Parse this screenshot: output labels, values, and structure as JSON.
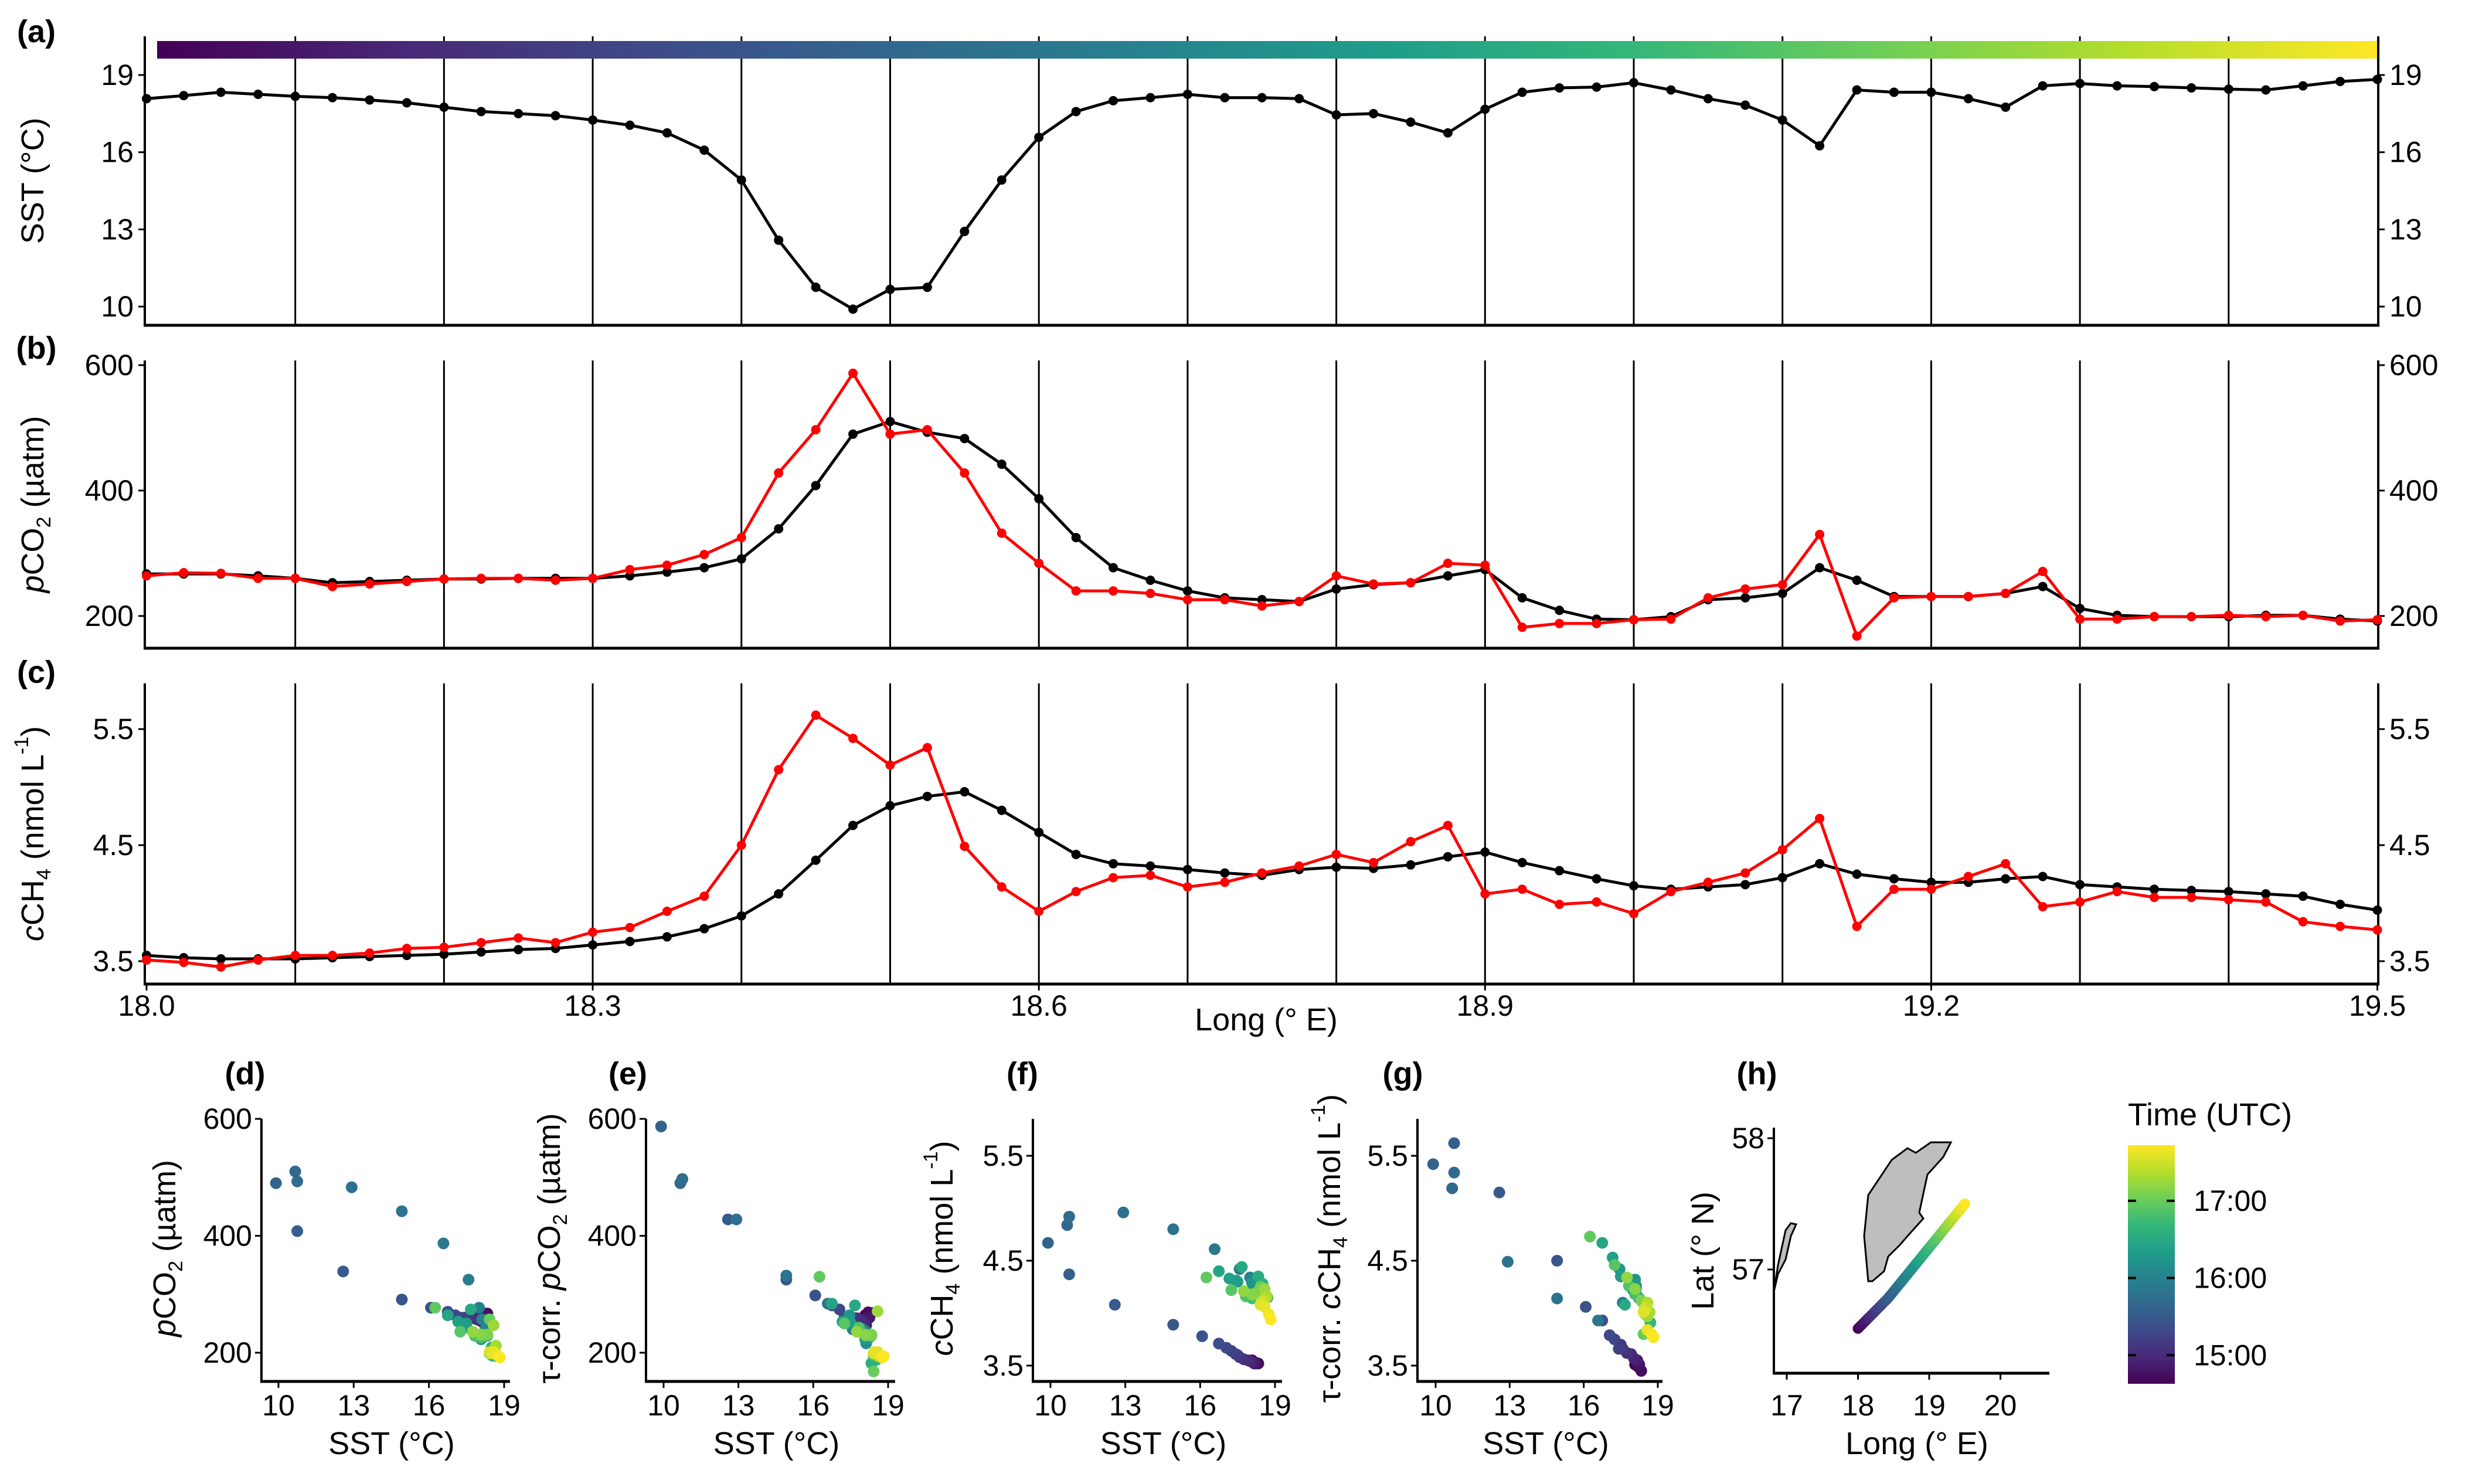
{
  "figure": {
    "panel_labels": {
      "a": "(a)",
      "b": "(b)",
      "c": "(c)",
      "d": "(d)",
      "e": "(e)",
      "f": "(f)",
      "g": "(g)",
      "h": "(h)"
    },
    "colormap": [
      "#440154",
      "#482878",
      "#3e4a89",
      "#31688e",
      "#26828e",
      "#1f9e89",
      "#35b779",
      "#6ece58",
      "#b5de2b",
      "#fde725"
    ],
    "colors": {
      "measured": "#000000",
      "tau_corrected": "#ff0000",
      "land": "#bebebe"
    }
  },
  "series": {
    "lon": [
      18.0,
      18.025,
      18.05,
      18.075,
      18.1,
      18.125,
      18.15,
      18.175,
      18.2,
      18.225,
      18.25,
      18.275,
      18.3,
      18.325,
      18.35,
      18.375,
      18.4,
      18.425,
      18.45,
      18.475,
      18.5,
      18.525,
      18.55,
      18.575,
      18.6,
      18.625,
      18.65,
      18.675,
      18.7,
      18.725,
      18.75,
      18.775,
      18.8,
      18.825,
      18.85,
      18.875,
      18.9,
      18.925,
      18.95,
      18.975,
      19.0,
      19.025,
      19.05,
      19.075,
      19.1,
      19.125,
      19.15,
      19.175,
      19.2,
      19.225,
      19.25,
      19.275,
      19.3,
      19.325,
      19.35,
      19.375,
      19.4,
      19.425,
      19.45,
      19.475,
      19.5
    ],
    "sst": [
      18.08,
      18.2,
      18.33,
      18.25,
      18.17,
      18.12,
      18.03,
      17.92,
      17.75,
      17.58,
      17.5,
      17.42,
      17.25,
      17.05,
      16.75,
      16.08,
      14.92,
      12.58,
      10.75,
      9.9,
      10.67,
      10.75,
      12.92,
      14.92,
      16.58,
      17.58,
      18.0,
      18.12,
      18.25,
      18.12,
      18.12,
      18.08,
      17.45,
      17.5,
      17.17,
      16.75,
      17.67,
      18.33,
      18.5,
      18.53,
      18.7,
      18.42,
      18.08,
      17.83,
      17.25,
      16.25,
      18.42,
      18.33,
      18.33,
      18.08,
      17.75,
      18.58,
      18.67,
      18.58,
      18.55,
      18.5,
      18.45,
      18.42,
      18.58,
      18.75,
      18.83
    ],
    "pco2": [
      267,
      267,
      267,
      264,
      260,
      253,
      255,
      257,
      259,
      259,
      260,
      260,
      260,
      264,
      270,
      277,
      291,
      339,
      408,
      490,
      510,
      493,
      483,
      442,
      387,
      325,
      277,
      257,
      240,
      229,
      226,
      223,
      243,
      250,
      253,
      264,
      274,
      229,
      209,
      195,
      194,
      199,
      226,
      229,
      236,
      277,
      257,
      231,
      231,
      231,
      236,
      247,
      212,
      201,
      199,
      199,
      199,
      201,
      201,
      195,
      192
    ],
    "pco2_tau": [
      264,
      269,
      268,
      260,
      260,
      247,
      251,
      255,
      259,
      260,
      260,
      257,
      260,
      274,
      281,
      298,
      325,
      428,
      497,
      587,
      490,
      497,
      428,
      332,
      284,
      240,
      240,
      236,
      226,
      226,
      216,
      223,
      264,
      251,
      253,
      284,
      281,
      182,
      188,
      188,
      194,
      195,
      229,
      243,
      250,
      330,
      168,
      229,
      231,
      231,
      236,
      271,
      195,
      195,
      199,
      199,
      201,
      199,
      201,
      192,
      194
    ],
    "ch4": [
      3.55,
      3.53,
      3.52,
      3.52,
      3.52,
      3.53,
      3.54,
      3.55,
      3.56,
      3.58,
      3.6,
      3.61,
      3.64,
      3.67,
      3.71,
      3.78,
      3.89,
      4.08,
      4.37,
      4.67,
      4.84,
      4.92,
      4.96,
      4.8,
      4.61,
      4.42,
      4.34,
      4.32,
      4.29,
      4.26,
      4.24,
      4.29,
      4.31,
      4.3,
      4.33,
      4.4,
      4.44,
      4.35,
      4.28,
      4.21,
      4.15,
      4.12,
      4.14,
      4.16,
      4.22,
      4.34,
      4.25,
      4.21,
      4.18,
      4.18,
      4.21,
      4.23,
      4.16,
      4.14,
      4.12,
      4.11,
      4.1,
      4.08,
      4.06,
      3.99,
      3.94
    ],
    "ch4_tau": [
      3.51,
      3.49,
      3.45,
      3.51,
      3.55,
      3.55,
      3.57,
      3.61,
      3.62,
      3.66,
      3.7,
      3.66,
      3.75,
      3.79,
      3.93,
      4.06,
      4.5,
      5.15,
      5.62,
      5.42,
      5.19,
      5.34,
      4.49,
      4.14,
      3.93,
      4.1,
      4.22,
      4.24,
      4.14,
      4.18,
      4.26,
      4.32,
      4.42,
      4.35,
      4.53,
      4.67,
      4.08,
      4.12,
      3.99,
      4.01,
      3.91,
      4.1,
      4.18,
      4.26,
      4.46,
      4.73,
      3.8,
      4.12,
      4.12,
      4.23,
      4.34,
      3.97,
      4.01,
      4.1,
      4.05,
      4.05,
      4.03,
      4.01,
      3.84,
      3.8,
      3.77
    ]
  },
  "chart_data": [
    {
      "id": "a",
      "type": "line",
      "xlabel": "",
      "ylabel_parts": [
        {
          "t": "SST (°C)"
        }
      ],
      "ylim": [
        9.3,
        20.5
      ],
      "yticks": [
        19,
        16,
        13,
        10
      ],
      "ytick_labels": [
        "19",
        "16",
        "13",
        "10"
      ],
      "series": [
        {
          "name": "SST",
          "key": "sst",
          "color": "measured"
        }
      ],
      "time_bar": true,
      "grid_x": "every 0.1°"
    },
    {
      "id": "b",
      "type": "line",
      "xlabel": "",
      "ylabel_parts": [
        {
          "t": "p",
          "s": "i"
        },
        {
          "t": "CO"
        },
        {
          "t": "2",
          "s": "sub"
        },
        {
          "t": " (µatm)"
        }
      ],
      "ylim": [
        149,
        607
      ],
      "yticks": [
        600,
        400,
        200
      ],
      "ytick_labels": [
        "600",
        "400",
        "200"
      ],
      "series": [
        {
          "name": "pCO2",
          "key": "pco2",
          "color": "measured"
        },
        {
          "name": "τ-corr. pCO2",
          "key": "pco2_tau",
          "color": "tau_corrected"
        }
      ]
    },
    {
      "id": "c",
      "type": "line",
      "xlabel": "Long (° E)",
      "ylabel_parts": [
        {
          "t": "c",
          "s": "i"
        },
        {
          "t": "CH"
        },
        {
          "t": "4",
          "s": "sub"
        },
        {
          "t": " (nmol L"
        },
        {
          "t": "-1",
          "s": "sup"
        },
        {
          "t": ")"
        }
      ],
      "ylim": [
        3.28,
        5.86
      ],
      "yticks": [
        5.5,
        4.5,
        3.5
      ],
      "ytick_labels": [
        "5.5",
        "4.5",
        "3.5"
      ],
      "xlim": [
        18.0,
        19.5
      ],
      "xticks": [
        18.0,
        18.3,
        18.6,
        18.9,
        19.2,
        19.5
      ],
      "xtick_labels": [
        "18.0",
        "18.3",
        "18.6",
        "18.9",
        "19.2",
        "19.5"
      ],
      "series": [
        {
          "name": "cCH4",
          "key": "ch4",
          "color": "measured"
        },
        {
          "name": "τ-corr. cCH4",
          "key": "ch4_tau",
          "color": "tau_corrected"
        }
      ]
    },
    {
      "id": "d",
      "type": "scatter",
      "x_key": "sst",
      "y_key": "pco2",
      "xlabel": "SST (°C)",
      "ylabel_parts": [
        {
          "t": "p",
          "s": "i"
        },
        {
          "t": "CO"
        },
        {
          "t": "2",
          "s": "sub"
        },
        {
          "t": " (µatm)"
        }
      ],
      "xticks": [
        10,
        13,
        16,
        19
      ],
      "xtick_labels": [
        "10",
        "13",
        "16",
        "19"
      ],
      "yticks": [
        600,
        400,
        200
      ],
      "ytick_labels": [
        "600",
        "400",
        "200"
      ],
      "color_by": "time"
    },
    {
      "id": "e",
      "type": "scatter",
      "x_key": "sst",
      "y_key": "pco2_tau",
      "xlabel": "SST (°C)",
      "ylabel_parts": [
        {
          "t": "τ-corr. "
        },
        {
          "t": "p",
          "s": "i"
        },
        {
          "t": "CO"
        },
        {
          "t": "2",
          "s": "sub"
        },
        {
          "t": " (µatm)"
        }
      ],
      "xticks": [
        10,
        13,
        16,
        19
      ],
      "xtick_labels": [
        "10",
        "13",
        "16",
        "19"
      ],
      "yticks": [
        600,
        400,
        200
      ],
      "ytick_labels": [
        "600",
        "400",
        "200"
      ],
      "color_by": "time"
    },
    {
      "id": "f",
      "type": "scatter",
      "x_key": "sst",
      "y_key": "ch4",
      "xlabel": "SST (°C)",
      "ylabel_parts": [
        {
          "t": "c",
          "s": "i"
        },
        {
          "t": "CH"
        },
        {
          "t": "4",
          "s": "sub"
        },
        {
          "t": " (nmol L"
        },
        {
          "t": "-1",
          "s": "sup"
        },
        {
          "t": ")"
        }
      ],
      "xticks": [
        10,
        13,
        16,
        19
      ],
      "xtick_labels": [
        "10",
        "13",
        "16",
        "19"
      ],
      "yticks": [
        5.5,
        4.5,
        3.5
      ],
      "ytick_labels": [
        "5.5",
        "4.5",
        "3.5"
      ],
      "color_by": "time"
    },
    {
      "id": "g",
      "type": "scatter",
      "x_key": "sst",
      "y_key": "ch4_tau",
      "xlabel": "SST (°C)",
      "ylabel_parts": [
        {
          "t": "τ-corr. "
        },
        {
          "t": "c",
          "s": "i"
        },
        {
          "t": "CH"
        },
        {
          "t": "4",
          "s": "sub"
        },
        {
          "t": " (nmol L"
        },
        {
          "t": "-1",
          "s": "sup"
        },
        {
          "t": ")"
        }
      ],
      "xticks": [
        10,
        13,
        16,
        19
      ],
      "xtick_labels": [
        "10",
        "13",
        "16",
        "19"
      ],
      "yticks": [
        5.5,
        4.5,
        3.5
      ],
      "ytick_labels": [
        "5.5",
        "4.5",
        "3.5"
      ],
      "color_by": "time"
    },
    {
      "id": "h",
      "type": "map",
      "xlabel": "Long (° E)",
      "ylabel_parts": [
        {
          "t": "Lat (° N)"
        }
      ],
      "xticks": [
        17,
        18,
        19,
        20
      ],
      "xtick_labels": [
        "17",
        "18",
        "19",
        "20"
      ],
      "yticks": [
        58,
        57
      ],
      "ytick_labels": [
        "58",
        "57"
      ],
      "track": [
        [
          18.0,
          56.55
        ],
        [
          18.42,
          56.78
        ],
        [
          19.5,
          57.5
        ]
      ]
    }
  ],
  "legend": {
    "title": "Time (UTC)",
    "ticks": [
      {
        "label": "17:00",
        "value": 17.0
      },
      {
        "label": "16:00",
        "value": 16.0
      },
      {
        "label": "15:00",
        "value": 15.0
      }
    ],
    "range": [
      14.63,
      17.72
    ]
  }
}
